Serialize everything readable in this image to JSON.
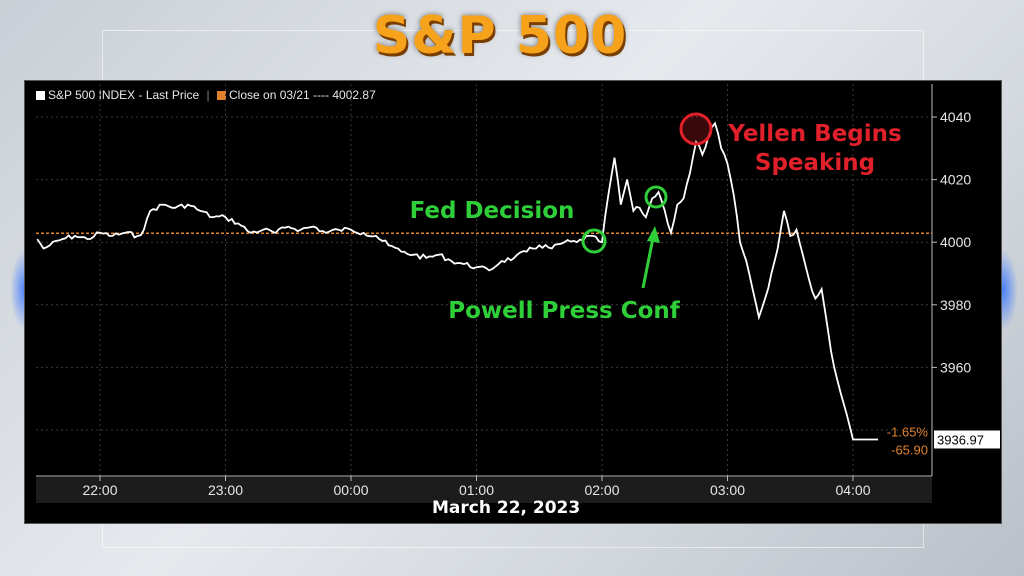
{
  "title": "S&P 500",
  "date": "March 22, 2023",
  "legend": {
    "series_label": "S&P 500 INDEX - Last Price",
    "close_label": "Close on 03/21 ---- 4002.87"
  },
  "colors": {
    "title": "#f7a21b",
    "price_line": "#ffffff",
    "close_line": "#e0802c",
    "annotation_green": "#2fcf3a",
    "annotation_red": "#e0202a",
    "background": "#000000"
  },
  "readouts": {
    "last_price": "3936.97",
    "pct_change": "-1.65%",
    "net_change": "-65.90"
  },
  "annotations": [
    {
      "text": "Fed Decision",
      "color": "green"
    },
    {
      "text": "Powell Press Conf",
      "color": "green"
    },
    {
      "text_line1": "Yellen Begins",
      "text_line2": "Speaking",
      "color": "red"
    }
  ],
  "chart_data": {
    "type": "line",
    "title": "S&P 500",
    "xlabel": "March 22, 2023",
    "ylabel": "",
    "x_ticks": [
      "22:00",
      "23:00",
      "00:00",
      "01:00",
      "02:00",
      "03:00",
      "04:00"
    ],
    "y_ticks": [
      3960,
      3980,
      4000,
      4020,
      4040
    ],
    "ylim": [
      3928,
      4047
    ],
    "x_range_hours": [
      -0.5,
      6.6
    ],
    "reference_line": {
      "name": "Close on 03/21",
      "value": 4002.87
    },
    "grid": true,
    "series": [
      {
        "name": "S&P 500 INDEX - Last Price",
        "x_hours": [
          -0.5,
          -0.45,
          -0.4,
          -0.3,
          -0.2,
          -0.1,
          0.0,
          0.1,
          0.2,
          0.3,
          0.35,
          0.4,
          0.5,
          0.6,
          0.7,
          0.8,
          0.9,
          1.0,
          1.1,
          1.2,
          1.3,
          1.4,
          1.5,
          1.6,
          1.7,
          1.8,
          1.9,
          2.0,
          2.1,
          2.2,
          2.3,
          2.4,
          2.5,
          2.6,
          2.7,
          2.8,
          2.9,
          3.0,
          3.1,
          3.2,
          3.3,
          3.4,
          3.5,
          3.6,
          3.7,
          3.8,
          3.9,
          4.0,
          4.05,
          4.1,
          4.15,
          4.2,
          4.25,
          4.3,
          4.35,
          4.4,
          4.45,
          4.5,
          4.55,
          4.6,
          4.65,
          4.7,
          4.75,
          4.8,
          4.85,
          4.9,
          4.95,
          5.0,
          5.05,
          5.1,
          5.15,
          5.2,
          5.25,
          5.3,
          5.35,
          5.4,
          5.45,
          5.5,
          5.55,
          5.6,
          5.65,
          5.7,
          5.75,
          5.8,
          5.85,
          5.9,
          5.95,
          6.0,
          6.1,
          6.2
        ],
        "values": [
          4001,
          3998,
          3999,
          4001,
          4002,
          4001,
          4003,
          4002,
          4003,
          4002,
          4004,
          4010,
          4012,
          4011,
          4012,
          4010,
          4008,
          4008,
          4006,
          4003,
          4004,
          4003,
          4005,
          4004,
          4005,
          4003,
          4004,
          4004,
          4003,
          4002,
          3999,
          3997,
          3996,
          3995,
          3996,
          3994,
          3993,
          3992,
          3991,
          3994,
          3995,
          3997,
          3999,
          3998,
          4000,
          4000,
          4002,
          4000,
          4015,
          4027,
          4012,
          4020,
          4010,
          4011,
          4008,
          4014,
          4016,
          4010,
          4003,
          4012,
          4014,
          4022,
          4032,
          4028,
          4034,
          4038,
          4030,
          4025,
          4015,
          4000,
          3994,
          3985,
          3976,
          3982,
          3990,
          3998,
          4010,
          4002,
          4004,
          3996,
          3988,
          3982,
          3985,
          3972,
          3960,
          3952,
          3945,
          3936.97,
          3936.97,
          3936.97
        ]
      }
    ]
  }
}
